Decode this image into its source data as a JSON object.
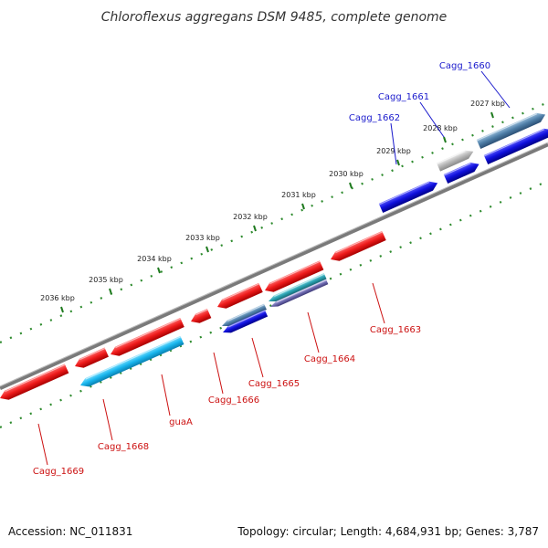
{
  "title": "Chloroflexus aggregans DSM 9485, complete genome",
  "footer": {
    "accession": "Accession: NC_011831",
    "summary": "Topology: circular; Length: 4,684,931 bp; Genes: 3,787"
  },
  "colors": {
    "backbone": "#7a7a7a",
    "tick_dots": "#2e8b2e",
    "forward_label": "#1a1acc",
    "reverse_label": "#cc1111",
    "red_gene": "#ee1b1b",
    "cyan_gene": "#19b6ee",
    "blue_gene": "#1010dd",
    "steel_gene": "#4f7fa8",
    "grey_gene": "#b8b8b8",
    "teal_gene": "#2aa0b0",
    "purple_gene": "#6e6ab0"
  },
  "ticks": [
    "2027 kbp",
    "2028 kbp",
    "2029 kbp",
    "2030 kbp",
    "2031 kbp",
    "2032 kbp",
    "2033 kbp",
    "2034 kbp",
    "2035 kbp",
    "2036 kbp"
  ],
  "genes": [
    {
      "label": "Cagg_1660",
      "strand": "forward",
      "color": "steel"
    },
    {
      "label": "Cagg_1661",
      "strand": "forward",
      "color": "grey"
    },
    {
      "label": "Cagg_1662",
      "strand": "forward",
      "color": "blue"
    },
    {
      "label": "Cagg_1663",
      "strand": "reverse",
      "color": "red"
    },
    {
      "label": "Cagg_1664",
      "strand": "reverse",
      "color": "purple"
    },
    {
      "label": "Cagg_1665",
      "strand": "reverse",
      "color": "blue"
    },
    {
      "label": "Cagg_1666",
      "strand": "reverse",
      "color": "red"
    },
    {
      "label": "guaA",
      "strand": "reverse",
      "color": "cyan"
    },
    {
      "label": "Cagg_1668",
      "strand": "reverse",
      "color": "red"
    },
    {
      "label": "Cagg_1669",
      "strand": "reverse",
      "color": "red"
    }
  ]
}
